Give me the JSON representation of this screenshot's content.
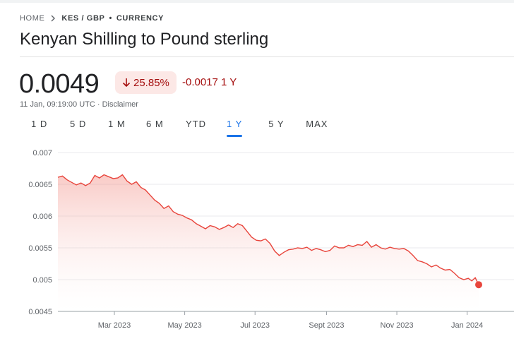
{
  "breadcrumb": {
    "home": "HOME",
    "pair": "KES / GBP",
    "separator": "•",
    "category": "CURRENCY"
  },
  "title": "Kenyan Shilling to Pound sterling",
  "quote": {
    "price": "0.0049",
    "change_percent": "25.85%",
    "change_direction": "down",
    "change_abs": "-0.0017 1 Y",
    "timestamp": "11 Jan, 09:19:00 UTC · ",
    "disclaimer": "Disclaimer"
  },
  "ranges": [
    {
      "label": "1 D"
    },
    {
      "label": "5 D"
    },
    {
      "label": "1 M"
    },
    {
      "label": "6 M"
    },
    {
      "label": "YTD"
    },
    {
      "label": "1 Y"
    },
    {
      "label": "5 Y"
    },
    {
      "label": "MAX"
    }
  ],
  "selected_range": "1 Y",
  "colors": {
    "line": "#e8453c",
    "badge_bg": "#fce8e6",
    "negative": "#a50e0e",
    "accent": "#1a73e8"
  },
  "chart_data": {
    "type": "line",
    "ylim": [
      0.0045,
      0.007
    ],
    "y_ticks": [
      "0.0045",
      "0.005",
      "0.0055",
      "0.006",
      "0.0065",
      "0.007"
    ],
    "x_ticks": [
      {
        "label": "Mar 2023",
        "date": "2023-03-01"
      },
      {
        "label": "May 2023",
        "date": "2023-05-01"
      },
      {
        "label": "Jul 2023",
        "date": "2023-07-01"
      },
      {
        "label": "Sept 2023",
        "date": "2023-09-01"
      },
      {
        "label": "Nov 2023",
        "date": "2023-11-01"
      },
      {
        "label": "Jan 2024",
        "date": "2024-01-01"
      }
    ],
    "x_range": [
      "2023-01-11",
      "2024-01-11"
    ],
    "series": [
      {
        "points": [
          [
            "2023-01-11",
            0.00661
          ],
          [
            "2023-01-15",
            0.00663
          ],
          [
            "2023-01-19",
            0.00657
          ],
          [
            "2023-01-23",
            0.00653
          ],
          [
            "2023-01-27",
            0.00649
          ],
          [
            "2023-01-31",
            0.00652
          ],
          [
            "2023-02-04",
            0.00648
          ],
          [
            "2023-02-08",
            0.00652
          ],
          [
            "2023-02-12",
            0.00664
          ],
          [
            "2023-02-16",
            0.0066
          ],
          [
            "2023-02-20",
            0.00665
          ],
          [
            "2023-02-24",
            0.00662
          ],
          [
            "2023-02-28",
            0.00659
          ],
          [
            "2023-03-04",
            0.0066
          ],
          [
            "2023-03-08",
            0.00665
          ],
          [
            "2023-03-12",
            0.00655
          ],
          [
            "2023-03-16",
            0.0065
          ],
          [
            "2023-03-20",
            0.00654
          ],
          [
            "2023-03-24",
            0.00645
          ],
          [
            "2023-03-28",
            0.00641
          ],
          [
            "2023-04-01",
            0.00633
          ],
          [
            "2023-04-05",
            0.00625
          ],
          [
            "2023-04-09",
            0.0062
          ],
          [
            "2023-04-13",
            0.00612
          ],
          [
            "2023-04-17",
            0.00616
          ],
          [
            "2023-04-21",
            0.00607
          ],
          [
            "2023-04-25",
            0.00603
          ],
          [
            "2023-04-29",
            0.00601
          ],
          [
            "2023-05-03",
            0.00597
          ],
          [
            "2023-05-07",
            0.00594
          ],
          [
            "2023-05-11",
            0.00588
          ],
          [
            "2023-05-15",
            0.00584
          ],
          [
            "2023-05-19",
            0.0058
          ],
          [
            "2023-05-23",
            0.00585
          ],
          [
            "2023-05-27",
            0.00583
          ],
          [
            "2023-05-31",
            0.00579
          ],
          [
            "2023-06-04",
            0.00582
          ],
          [
            "2023-06-08",
            0.00586
          ],
          [
            "2023-06-12",
            0.00582
          ],
          [
            "2023-06-16",
            0.00588
          ],
          [
            "2023-06-20",
            0.00585
          ],
          [
            "2023-06-24",
            0.00576
          ],
          [
            "2023-06-28",
            0.00567
          ],
          [
            "2023-07-02",
            0.00562
          ],
          [
            "2023-07-06",
            0.00561
          ],
          [
            "2023-07-10",
            0.00564
          ],
          [
            "2023-07-14",
            0.00557
          ],
          [
            "2023-07-18",
            0.00545
          ],
          [
            "2023-07-22",
            0.00538
          ],
          [
            "2023-07-26",
            0.00543
          ],
          [
            "2023-07-30",
            0.00547
          ],
          [
            "2023-08-03",
            0.00548
          ],
          [
            "2023-08-07",
            0.0055
          ],
          [
            "2023-08-11",
            0.00549
          ],
          [
            "2023-08-15",
            0.00551
          ],
          [
            "2023-08-19",
            0.00546
          ],
          [
            "2023-08-23",
            0.00549
          ],
          [
            "2023-08-27",
            0.00547
          ],
          [
            "2023-08-31",
            0.00544
          ],
          [
            "2023-09-04",
            0.00546
          ],
          [
            "2023-09-08",
            0.00553
          ],
          [
            "2023-09-12",
            0.0055
          ],
          [
            "2023-09-16",
            0.0055
          ],
          [
            "2023-09-20",
            0.00554
          ],
          [
            "2023-09-24",
            0.00552
          ],
          [
            "2023-09-28",
            0.00555
          ],
          [
            "2023-10-02",
            0.00554
          ],
          [
            "2023-10-06",
            0.0056
          ],
          [
            "2023-10-10",
            0.00551
          ],
          [
            "2023-10-14",
            0.00555
          ],
          [
            "2023-10-18",
            0.0055
          ],
          [
            "2023-10-22",
            0.00548
          ],
          [
            "2023-10-26",
            0.00551
          ],
          [
            "2023-10-30",
            0.00549
          ],
          [
            "2023-11-03",
            0.00548
          ],
          [
            "2023-11-07",
            0.00549
          ],
          [
            "2023-11-11",
            0.00545
          ],
          [
            "2023-11-15",
            0.00538
          ],
          [
            "2023-11-19",
            0.0053
          ],
          [
            "2023-11-23",
            0.00528
          ],
          [
            "2023-11-27",
            0.00525
          ],
          [
            "2023-12-01",
            0.0052
          ],
          [
            "2023-12-05",
            0.00523
          ],
          [
            "2023-12-09",
            0.00518
          ],
          [
            "2023-12-13",
            0.00515
          ],
          [
            "2023-12-17",
            0.00516
          ],
          [
            "2023-12-21",
            0.0051
          ],
          [
            "2023-12-25",
            0.00503
          ],
          [
            "2023-12-29",
            0.005
          ],
          [
            "2024-01-02",
            0.00502
          ],
          [
            "2024-01-05",
            0.00498
          ],
          [
            "2024-01-08",
            0.00503
          ],
          [
            "2024-01-11",
            0.00492
          ]
        ]
      }
    ]
  }
}
